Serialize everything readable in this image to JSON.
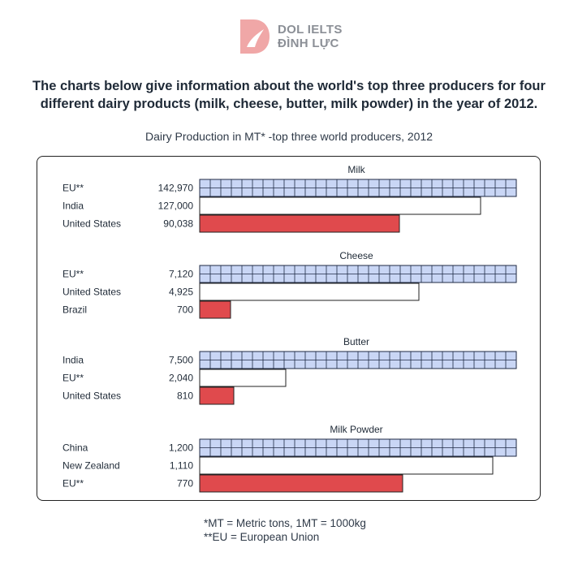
{
  "logo": {
    "line1": "DOL IELTS",
    "line2": "ĐÌNH LỰC"
  },
  "heading": {
    "line1": "The charts below give information about the world's top three producers for four",
    "line2": "different dairy products (milk, cheese, butter, milk powder) in the year of 2012."
  },
  "colors": {
    "first_fill": "#c9d6f5",
    "first_grid": "#1f2a44",
    "second_fill": "#ffffff",
    "third_fill": "#e04a4d",
    "logo": "#f0a7a7"
  },
  "chart_data": {
    "type": "bar",
    "title": "Dairy Production in MT* -top three world producers, 2012",
    "orientation": "horizontal",
    "groups": [
      {
        "name": "Milk",
        "bars": [
          {
            "label": "EU**",
            "value": 142970,
            "value_label": "142,970"
          },
          {
            "label": "India",
            "value": 127000,
            "value_label": "127,000"
          },
          {
            "label": "United States",
            "value": 90038,
            "value_label": "90,038"
          }
        ]
      },
      {
        "name": "Cheese",
        "bars": [
          {
            "label": "EU**",
            "value": 7120,
            "value_label": "7,120"
          },
          {
            "label": "United States",
            "value": 4925,
            "value_label": "4,925"
          },
          {
            "label": "Brazil",
            "value": 700,
            "value_label": "700"
          }
        ]
      },
      {
        "name": "Butter",
        "bars": [
          {
            "label": "India",
            "value": 7500,
            "value_label": "7,500"
          },
          {
            "label": "EU**",
            "value": 2040,
            "value_label": "2,040"
          },
          {
            "label": "United States",
            "value": 810,
            "value_label": "810"
          }
        ]
      },
      {
        "name": "Milk Powder",
        "bars": [
          {
            "label": "China",
            "value": 1200,
            "value_label": "1,200"
          },
          {
            "label": "New Zealand",
            "value": 1110,
            "value_label": "1,110"
          },
          {
            "label": "EU**",
            "value": 770,
            "value_label": "770"
          }
        ]
      }
    ]
  },
  "footnotes": {
    "mt": "*MT = Metric tons, 1MT = 1000kg",
    "eu": "**EU = European Union"
  }
}
